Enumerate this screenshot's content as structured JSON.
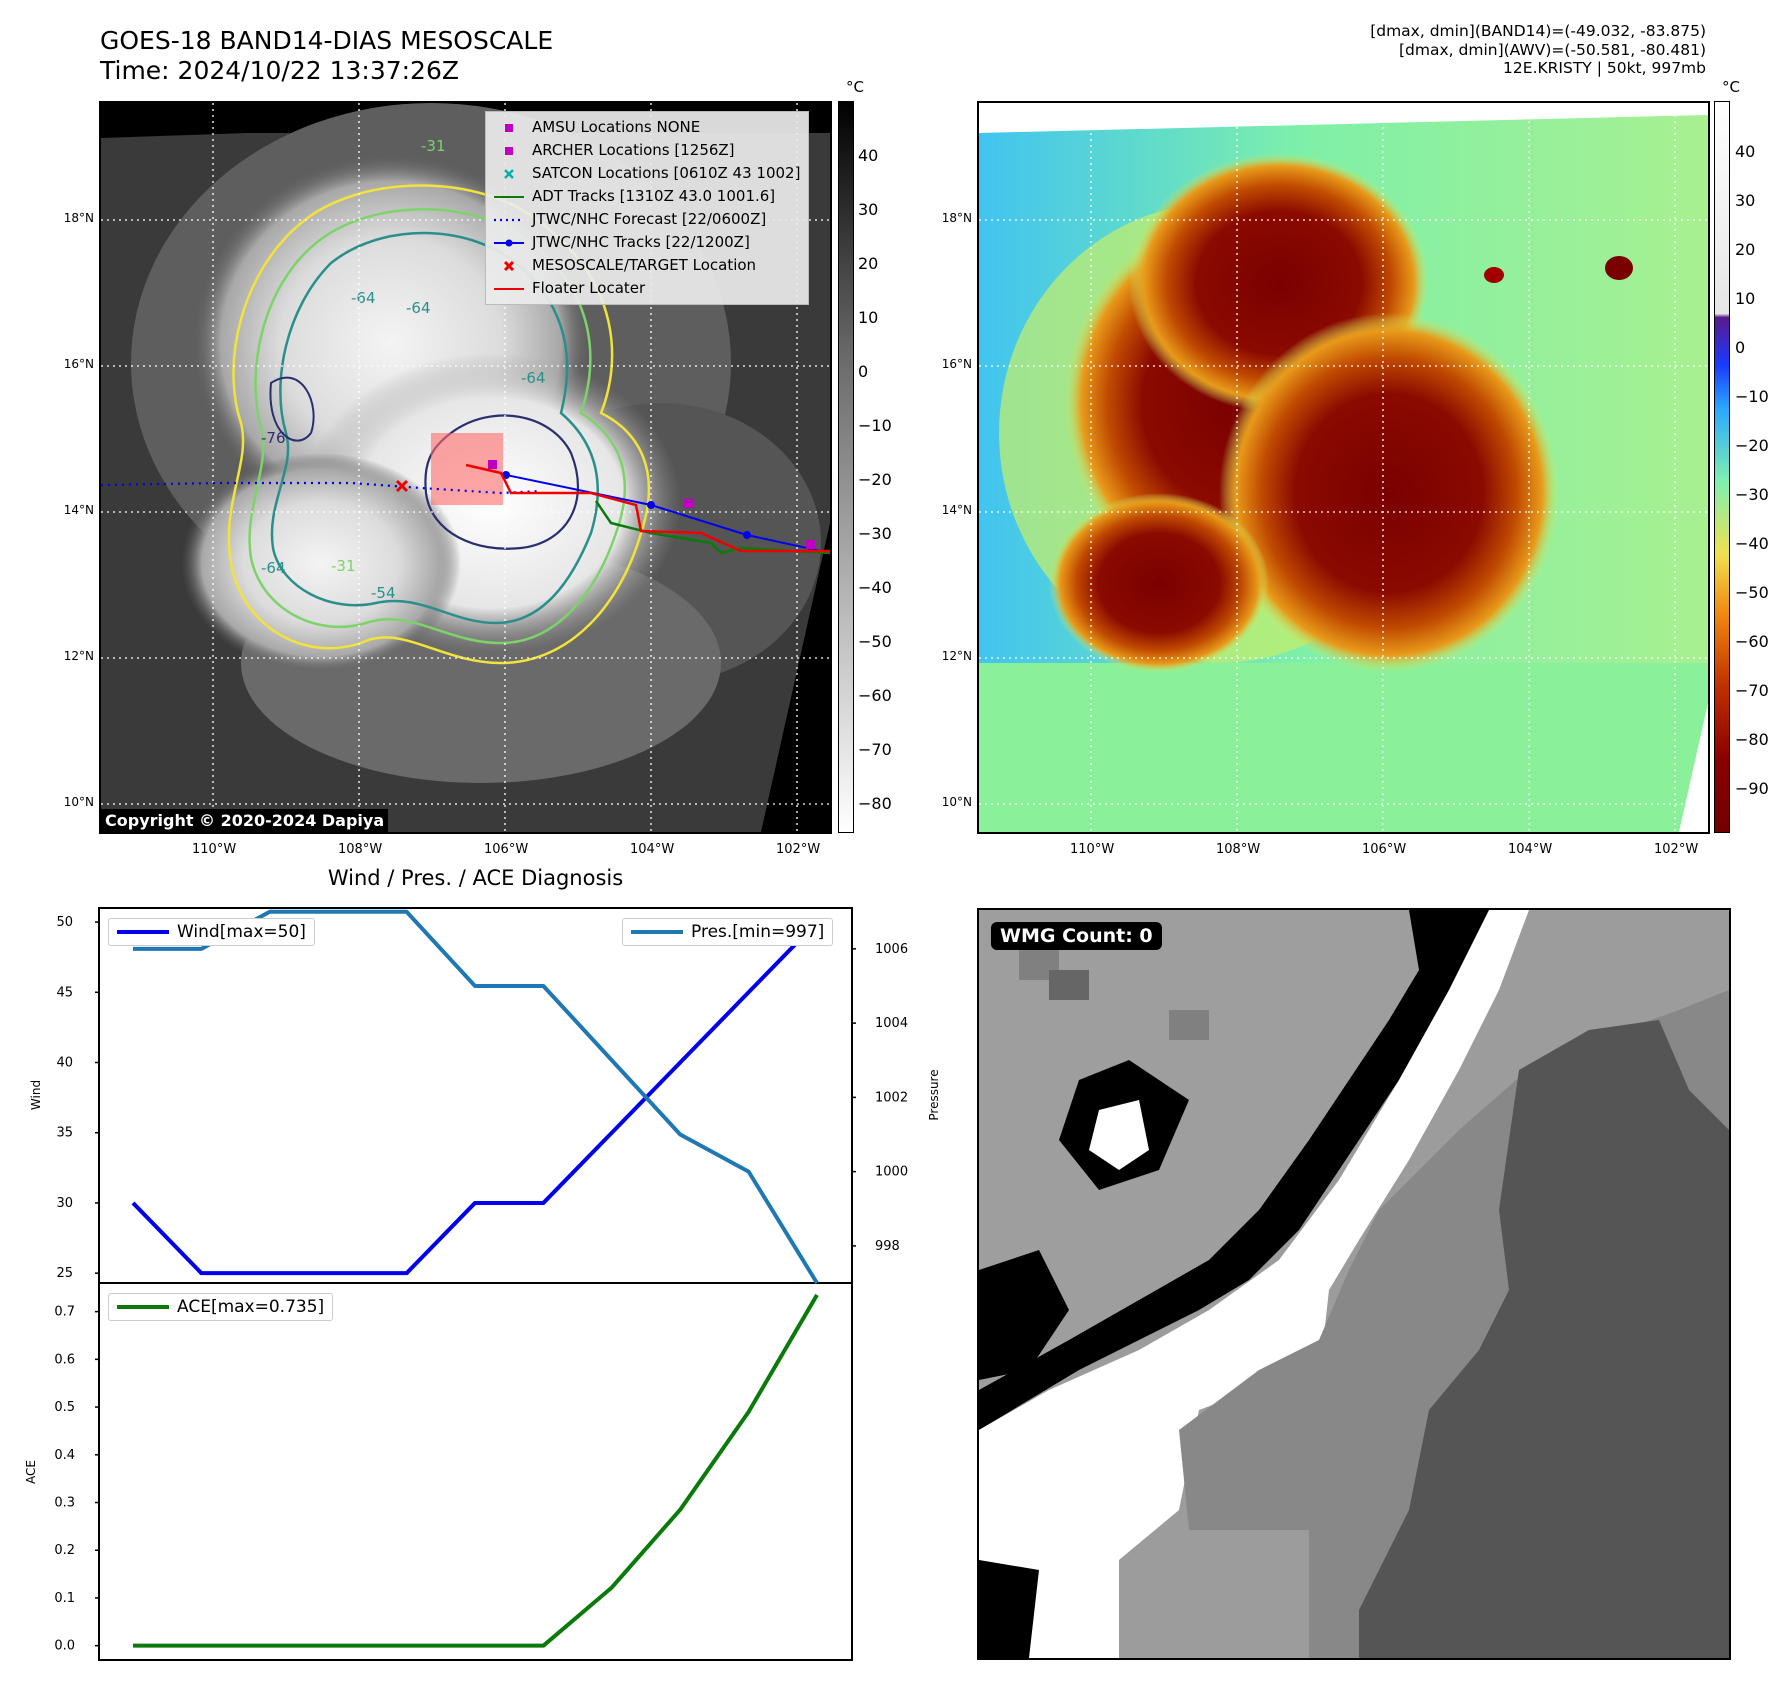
{
  "header": {
    "title_line1": "GOES-18 BAND14-DIAS MESOSCALE",
    "title_line2": "Time: 2024/10/22 13:37:26Z",
    "dmax_band14": "[dmax, dmin](BAND14)=(-49.032, -83.875)",
    "dmax_awv": "[dmax, dmin](AWV)=(-50.581, -80.481)",
    "storm_info": "12E.KRISTY | 50kt, 997mb"
  },
  "ir_panel": {
    "legend": [
      {
        "label": "AMSU Locations NONE",
        "color": "#c000c0",
        "marker": "square"
      },
      {
        "label": "ARCHER Locations [1256Z]",
        "color": "#c000c0",
        "marker": "square"
      },
      {
        "label": "SATCON Locations [0610Z 43 1002]",
        "color": "#00b0b0",
        "marker": "x"
      },
      {
        "label": "ADT Tracks [1310Z 43.0 1001.6]",
        "color": "#0a7a0a",
        "marker": "line"
      },
      {
        "label": "JTWC/NHC Forecast [22/0600Z]",
        "color": "#0000ee",
        "marker": "dotted"
      },
      {
        "label": "JTWC/NHC Tracks [22/1200Z]",
        "color": "#0000ee",
        "marker": "dotline"
      },
      {
        "label": "MESOSCALE/TARGET Location",
        "color": "#ee0000",
        "marker": "x"
      },
      {
        "label": "Floater Locater",
        "color": "#ee0000",
        "marker": "line"
      }
    ],
    "copyright": "Copyright © 2020-2024 Dapiya",
    "colorbar_unit": "°C",
    "colorbar_ticks": [
      "40",
      "30",
      "20",
      "10",
      "0",
      "−10",
      "−20",
      "−30",
      "−40",
      "−50",
      "−60",
      "−70",
      "−80"
    ],
    "contour_labels": [
      "-64",
      "-64",
      "-64",
      "-54",
      "-64",
      "-31",
      "-76",
      "-31"
    ],
    "colors": {
      "contour_yellow": "#f2e33a",
      "contour_green": "#7dd36a",
      "contour_teal": "#2a8f8a",
      "contour_navy": "#2a2f6f"
    }
  },
  "map_axes": {
    "lat_labels": [
      "18°N",
      "16°N",
      "14°N",
      "12°N",
      "10°N"
    ],
    "lon_labels": [
      "110°W",
      "108°W",
      "106°W",
      "104°W",
      "102°W"
    ]
  },
  "awv_panel": {
    "colorbar_unit": "°C",
    "colorbar_ticks": [
      "40",
      "30",
      "20",
      "10",
      "0",
      "−10",
      "−20",
      "−30",
      "−40",
      "−50",
      "−60",
      "−70",
      "−80",
      "−90"
    ]
  },
  "chart_data": [
    {
      "type": "line",
      "title": "Wind / Pres. / ACE Diagnosis",
      "ylabel": "Wind",
      "ylabel_right": "Pressure",
      "ylim": [
        24.3,
        51
      ],
      "ylim_right": [
        997,
        1007.1
      ],
      "yticks": [
        "50",
        "45",
        "40",
        "35",
        "30",
        "25"
      ],
      "yticks_right": [
        "1006",
        "1004",
        "1002",
        "1000",
        "998"
      ],
      "series": [
        {
          "name": "Wind[max=50]",
          "color": "#0000ee",
          "values": [
            30,
            25,
            25,
            25,
            25,
            30,
            30,
            35,
            40,
            45,
            50
          ]
        },
        {
          "name": "Pres.[min=997]",
          "color": "#1f77b4",
          "values": [
            1006,
            1006,
            1007,
            1007,
            1007,
            1005,
            1005,
            1003,
            1001,
            1000,
            997
          ]
        }
      ]
    },
    {
      "type": "line",
      "ylabel": "ACE",
      "ylim": [
        -0.03,
        0.76
      ],
      "yticks": [
        "0.7",
        "0.6",
        "0.5",
        "0.4",
        "0.3",
        "0.2",
        "0.1",
        "0.0"
      ],
      "series": [
        {
          "name": "ACE[max=0.735]",
          "color": "#0a7a0a",
          "values": [
            0,
            0,
            0,
            0,
            0,
            0,
            0,
            0.122,
            0.285,
            0.49,
            0.735
          ]
        }
      ]
    }
  ],
  "wmg_panel": {
    "badge": "WMG Count: 0"
  }
}
